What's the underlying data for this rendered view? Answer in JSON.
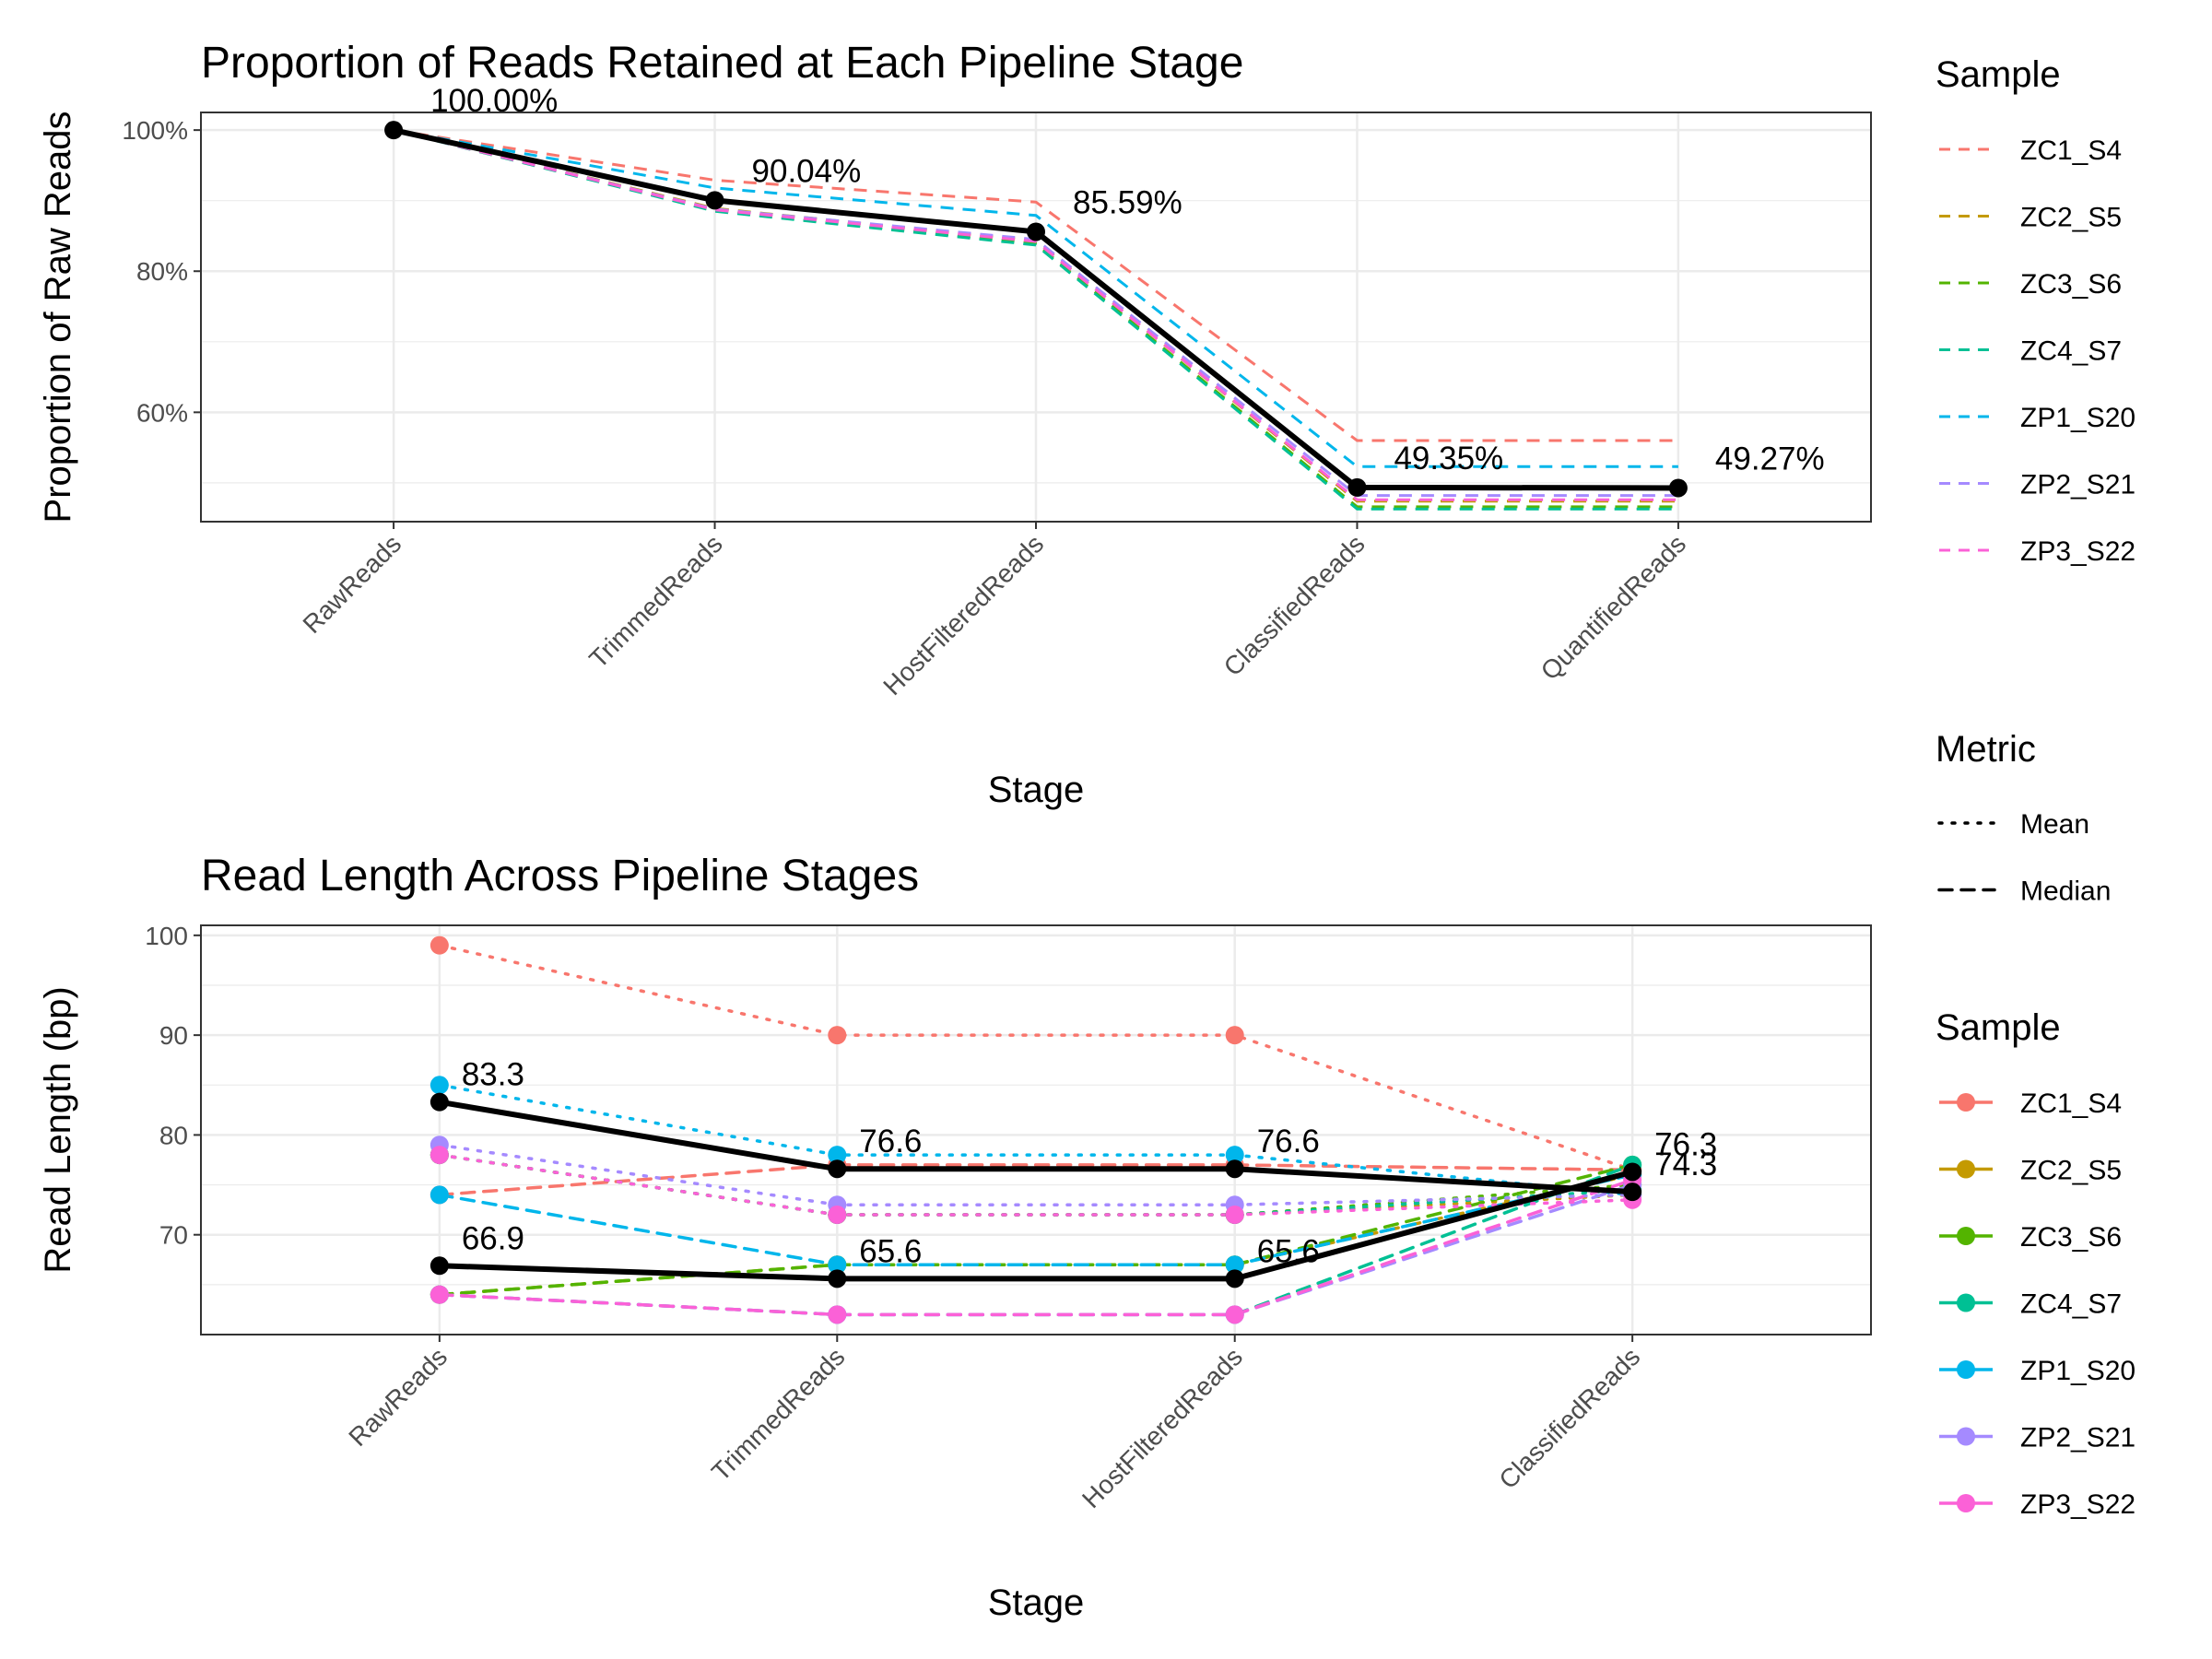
{
  "chart_data": [
    {
      "type": "line",
      "title": "Proportion of Reads Retained at Each Pipeline Stage",
      "xlabel": "Stage",
      "ylabel": "Proportion of Raw Reads",
      "categories": [
        "RawReads",
        "TrimmedReads",
        "HostFilteredReads",
        "ClassifiedReads",
        "QuantifiedReads"
      ],
      "ylim": [
        44.5,
        102.5
      ],
      "y_ticks": [
        60,
        80,
        100
      ],
      "y_tick_labels": [
        "60%",
        "80%",
        "100%"
      ],
      "grid": true,
      "series": [
        {
          "name": "ZC1_S4",
          "values": [
            100,
            92.9,
            89.8,
            56.0,
            56.0
          ],
          "style": "dashed"
        },
        {
          "name": "ZC2_S5",
          "values": [
            100,
            88.9,
            84.3,
            47.4,
            47.4
          ],
          "style": "dashed"
        },
        {
          "name": "ZC3_S6",
          "values": [
            100,
            88.6,
            83.9,
            46.6,
            46.6
          ],
          "style": "dashed"
        },
        {
          "name": "ZC4_S7",
          "values": [
            100,
            88.5,
            83.7,
            46.3,
            46.3
          ],
          "style": "dashed"
        },
        {
          "name": "ZP1_S20",
          "values": [
            100,
            91.8,
            87.9,
            52.3,
            52.3
          ],
          "style": "dashed"
        },
        {
          "name": "ZP2_S21",
          "values": [
            100,
            88.8,
            84.5,
            48.2,
            48.2
          ],
          "style": "dashed"
        },
        {
          "name": "ZP3_S22",
          "values": [
            100,
            88.7,
            84.2,
            47.6,
            47.6
          ],
          "style": "dashed"
        },
        {
          "name": "",
          "values": [
            100,
            90.04,
            85.59,
            49.35,
            49.27
          ],
          "style": "mean"
        }
      ],
      "data_labels": [
        "100.00%",
        "90.04%",
        "85.59%",
        "49.35%",
        "49.27%"
      ]
    },
    {
      "type": "line",
      "title": "Read Length Across Pipeline Stages",
      "xlabel": "Stage",
      "ylabel": "Read Length (bp)",
      "categories": [
        "RawReads",
        "TrimmedReads",
        "HostFilteredReads",
        "ClassifiedReads"
      ],
      "ylim": [
        60,
        101
      ],
      "y_ticks": [
        70,
        80,
        90,
        100
      ],
      "y_tick_labels": [
        "70",
        "80",
        "90",
        "100"
      ],
      "grid": true,
      "series": [
        {
          "name": "ZC1_S4",
          "metric": "Mean",
          "values": [
            99,
            90,
            90,
            76.5
          ]
        },
        {
          "name": "ZC1_S4",
          "metric": "Median",
          "values": [
            74,
            77,
            77,
            76.5
          ]
        },
        {
          "name": "ZC2_S5",
          "metric": "Mean",
          "values": [
            78,
            72,
            72,
            74
          ]
        },
        {
          "name": "ZC2_S5",
          "metric": "Median",
          "values": [
            64,
            67,
            67,
            76
          ]
        },
        {
          "name": "ZC3_S6",
          "metric": "Mean",
          "values": [
            78,
            72,
            72,
            75
          ]
        },
        {
          "name": "ZC3_S6",
          "metric": "Median",
          "values": [
            64,
            67,
            67,
            77
          ]
        },
        {
          "name": "ZC4_S7",
          "metric": "Mean",
          "values": [
            78,
            72,
            72,
            74.5
          ]
        },
        {
          "name": "ZC4_S7",
          "metric": "Median",
          "values": [
            64,
            62,
            62,
            77
          ]
        },
        {
          "name": "ZP1_S20",
          "metric": "Mean",
          "values": [
            85,
            78,
            78,
            74
          ]
        },
        {
          "name": "ZP1_S20",
          "metric": "Median",
          "values": [
            74,
            67,
            67,
            76
          ]
        },
        {
          "name": "ZP2_S21",
          "metric": "Mean",
          "values": [
            79,
            73,
            73,
            74
          ]
        },
        {
          "name": "ZP2_S21",
          "metric": "Median",
          "values": [
            64,
            62,
            62,
            75
          ]
        },
        {
          "name": "ZP3_S22",
          "metric": "Mean",
          "values": [
            78,
            72,
            72,
            73.5
          ]
        },
        {
          "name": "ZP3_S22",
          "metric": "Median",
          "values": [
            64,
            62,
            62,
            75.5
          ]
        }
      ],
      "overall": [
        {
          "metric": "Mean",
          "values": [
            83.3,
            76.6,
            76.6,
            74.3
          ]
        },
        {
          "metric": "Median",
          "values": [
            66.9,
            65.6,
            65.6,
            76.3
          ]
        }
      ],
      "data_labels_mean": [
        "83.3",
        "76.6",
        "76.6",
        "74.3"
      ],
      "data_labels_median": [
        "66.9",
        "65.6",
        "65.6",
        "76.3"
      ]
    }
  ],
  "legend": {
    "sample_title_top": "Sample",
    "metric_title": "Metric",
    "metric_items": [
      "Mean",
      "Median"
    ],
    "sample_title_bottom": "Sample",
    "samples": [
      "ZC1_S4",
      "ZC2_S5",
      "ZC3_S6",
      "ZC4_S7",
      "ZP1_S20",
      "ZP2_S21",
      "ZP3_S22"
    ],
    "colors": [
      "#F8766D",
      "#C49A00",
      "#53B400",
      "#00C094",
      "#00B6EB",
      "#A58AFF",
      "#FB61D7"
    ]
  }
}
